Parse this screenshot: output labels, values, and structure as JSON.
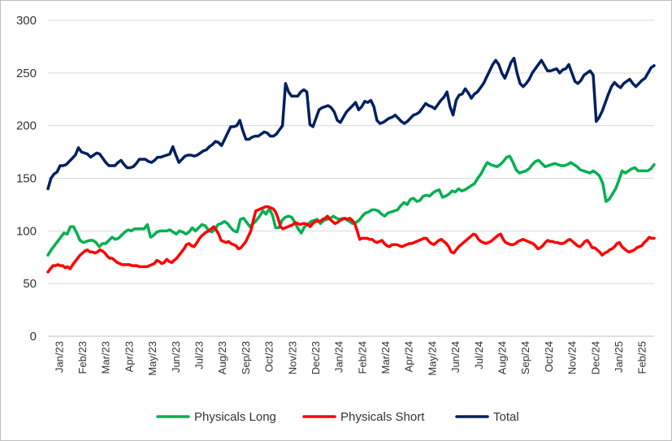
{
  "chart_data": {
    "type": "line",
    "title": "",
    "xlabel": "",
    "ylabel": "",
    "ylim": [
      0,
      300
    ],
    "yticks": [
      0,
      50,
      100,
      150,
      200,
      250,
      300
    ],
    "grid": "horizontal",
    "legend_position": "bottom",
    "x_tick_labels": [
      "Jan/23",
      "Feb/23",
      "Mar/23",
      "Apr/23",
      "May/23",
      "Jun/23",
      "Jul/23",
      "Aug/23",
      "Sep/23",
      "Oct/23",
      "Nov/23",
      "Dec/23",
      "Jan/24",
      "Feb/24",
      "Mar/24",
      "Apr/24",
      "May/24",
      "Jun/24",
      "Jul/24",
      "Aug/24",
      "Sep/24",
      "Oct/24",
      "Nov/24",
      "Dec/24",
      "Jan/25",
      "Feb/25"
    ],
    "series": [
      {
        "name": "Physicals Long",
        "color": "#00b050",
        "values": [
          77,
          82,
          86,
          90,
          94,
          98,
          97,
          104,
          104,
          98,
          91,
          89,
          90,
          91,
          91,
          89,
          85,
          88,
          88,
          91,
          94,
          92,
          93,
          96,
          99,
          101,
          100,
          102,
          102,
          102,
          102,
          106,
          94,
          96,
          99,
          100,
          100,
          100,
          101,
          99,
          97,
          100,
          99,
          97,
          99,
          103,
          100,
          103,
          106,
          105,
          101,
          99,
          101,
          106,
          107,
          109,
          107,
          103,
          100,
          99,
          111,
          112,
          108,
          104,
          107,
          110,
          114,
          119,
          116,
          121,
          115,
          103,
          103,
          110,
          113,
          114,
          113,
          108,
          102,
          98,
          104,
          106,
          109,
          110,
          111,
          107,
          110,
          111,
          112,
          114,
          112,
          111,
          112,
          111,
          109,
          107,
          108,
          110,
          114,
          117,
          118,
          120,
          120,
          119,
          116,
          114,
          117,
          118,
          119,
          120,
          124,
          127,
          125,
          130,
          131,
          128,
          129,
          133,
          134,
          133,
          136,
          138,
          139,
          132,
          133,
          135,
          138,
          137,
          140,
          138,
          139,
          141,
          143,
          145,
          150,
          154,
          160,
          165,
          163,
          162,
          161,
          163,
          166,
          170,
          171,
          165,
          158,
          155,
          156,
          157,
          159,
          163,
          166,
          167,
          164,
          161,
          162,
          163,
          164,
          163,
          162,
          162,
          163,
          165,
          163,
          161,
          158,
          157,
          156,
          155,
          157,
          155,
          152,
          145,
          128,
          130,
          135,
          140,
          148,
          157,
          155,
          157,
          159,
          160,
          157,
          157,
          157,
          157,
          159,
          163
        ]
      },
      {
        "name": "Physicals Short",
        "color": "#ff0000",
        "values": [
          61,
          64,
          67,
          67,
          68,
          67,
          67,
          65,
          66,
          64,
          68,
          71,
          74,
          77,
          79,
          81,
          82,
          80,
          80,
          79,
          80,
          82,
          81,
          79,
          76,
          74,
          74,
          72,
          70,
          69,
          68,
          68,
          68,
          68,
          67,
          67,
          67,
          66,
          66,
          66,
          66,
          67,
          68,
          69,
          72,
          71,
          69,
          70,
          73,
          71,
          70,
          72,
          74,
          77,
          80,
          83,
          87,
          88,
          86,
          85,
          88,
          92,
          95,
          97,
          99,
          100,
          102,
          104,
          101,
          97,
          91,
          90,
          89,
          90,
          88,
          87,
          86,
          83,
          84,
          87,
          90,
          95,
          100,
          110,
          119,
          120,
          121,
          122,
          123,
          123,
          122,
          121,
          118,
          112,
          104,
          102,
          103,
          104,
          105,
          106,
          108,
          107,
          106,
          107,
          107,
          106,
          104,
          107,
          109,
          109,
          109,
          111,
          112,
          114,
          111,
          109,
          107,
          108,
          110,
          111,
          112,
          111,
          112,
          110,
          107,
          100,
          92,
          93,
          93,
          93,
          92,
          92,
          90,
          89,
          90,
          91,
          88,
          86,
          85,
          87,
          87,
          87,
          86,
          85,
          86,
          87,
          88,
          88,
          89,
          90,
          91,
          92,
          93,
          93,
          90,
          88,
          87,
          89,
          91,
          92,
          90,
          88,
          85,
          80,
          79,
          82,
          85,
          87,
          89,
          91,
          93,
          95,
          97,
          96,
          92,
          90,
          89,
          88,
          89,
          90,
          92,
          94,
          96,
          97,
          92,
          89,
          88,
          87,
          87,
          88,
          90,
          91,
          92,
          91,
          90,
          89,
          88,
          86,
          83,
          84,
          86,
          89,
          91,
          90,
          90,
          89,
          89,
          88,
          88,
          89,
          91,
          92,
          90,
          88,
          86,
          85,
          87,
          90,
          91,
          88,
          84,
          84,
          82,
          80,
          77,
          79,
          80,
          82,
          83,
          85,
          88,
          89,
          85,
          83,
          81,
          80,
          81,
          82,
          84,
          85,
          86,
          89,
          91,
          94,
          93,
          93
        ]
      },
      {
        "name": "Total",
        "color": "#002060",
        "values": [
          140,
          150,
          154,
          156,
          162,
          162,
          163,
          166,
          169,
          172,
          179,
          175,
          174,
          173,
          170,
          172,
          174,
          173,
          169,
          165,
          162,
          162,
          162,
          165,
          167,
          163,
          160,
          160,
          161,
          164,
          168,
          168,
          168,
          166,
          165,
          167,
          170,
          170,
          171,
          172,
          173,
          180,
          172,
          165,
          168,
          171,
          172,
          172,
          171,
          172,
          174,
          176,
          177,
          180,
          182,
          185,
          184,
          181,
          187,
          193,
          199,
          199,
          200,
          205,
          195,
          187,
          187,
          189,
          190,
          190,
          192,
          194,
          193,
          190,
          190,
          192,
          196,
          200,
          240,
          232,
          228,
          228,
          228,
          232,
          234,
          232,
          201,
          199,
          207,
          215,
          217,
          218,
          219,
          217,
          213,
          205,
          203,
          208,
          213,
          216,
          219,
          222,
          215,
          218,
          223,
          222,
          224,
          218,
          205,
          202,
          203,
          205,
          207,
          208,
          210,
          207,
          204,
          202,
          204,
          207,
          210,
          211,
          213,
          217,
          221,
          219,
          218,
          216,
          220,
          224,
          227,
          232,
          218,
          210,
          224,
          229,
          230,
          235,
          231,
          226,
          230,
          232,
          236,
          240,
          246,
          252,
          258,
          262,
          258,
          250,
          245,
          252,
          260,
          264,
          250,
          240,
          237,
          240,
          244,
          250,
          254,
          258,
          262,
          257,
          252,
          252,
          253,
          254,
          250,
          253,
          254,
          258,
          250,
          242,
          240,
          243,
          248,
          250,
          252,
          248,
          204,
          208,
          214,
          222,
          230,
          237,
          241,
          238,
          236,
          240,
          242,
          244,
          240,
          237,
          240,
          243,
          245,
          250,
          255,
          257
        ]
      }
    ]
  }
}
